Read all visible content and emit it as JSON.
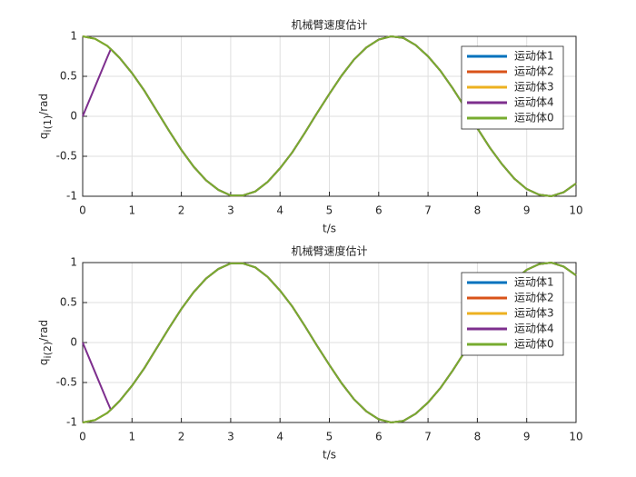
{
  "chart_data": [
    {
      "type": "line",
      "title": "机械臂速度估计",
      "xlabel": "t/s",
      "ylabel": "q",
      "ylabel_sub": "i(1)",
      "ylabel_suffix": "/rad",
      "xlim": [
        0,
        10
      ],
      "ylim": [
        -1,
        1
      ],
      "xticks": [
        0,
        1,
        2,
        3,
        4,
        5,
        6,
        7,
        8,
        9,
        10
      ],
      "yticks": [
        -1,
        -0.5,
        0,
        0.5,
        1
      ],
      "grid": true,
      "legend": "upper right",
      "x": [
        0,
        0.25,
        0.5,
        0.57,
        0.75,
        1,
        1.25,
        1.5,
        1.75,
        2,
        2.25,
        2.5,
        2.75,
        3,
        3.25,
        3.5,
        3.75,
        4,
        4.25,
        4.5,
        4.75,
        5,
        5.25,
        5.5,
        5.75,
        6,
        6.25,
        6.5,
        6.75,
        7,
        7.25,
        7.5,
        7.75,
        8,
        8.25,
        8.5,
        8.75,
        9,
        9.25,
        9.5,
        9.75,
        10
      ],
      "series": [
        {
          "name": "运动体1",
          "color": "#0072bd",
          "values": [
            1,
            0.97,
            0.88,
            0.84,
            0.73,
            0.54,
            0.32,
            0.07,
            -0.18,
            -0.42,
            -0.63,
            -0.8,
            -0.92,
            -0.99,
            -0.99,
            -0.94,
            -0.82,
            -0.65,
            -0.45,
            -0.21,
            0.04,
            0.28,
            0.51,
            0.71,
            0.86,
            0.96,
            1,
            0.98,
            0.89,
            0.75,
            0.57,
            0.35,
            0.11,
            -0.15,
            -0.39,
            -0.6,
            -0.78,
            -0.91,
            -0.98,
            -1,
            -0.95,
            -0.84
          ]
        },
        {
          "name": "运动体2",
          "color": "#d95319",
          "values": [
            1,
            0.97,
            0.88,
            0.84,
            0.73,
            0.54,
            0.32,
            0.07,
            -0.18,
            -0.42,
            -0.63,
            -0.8,
            -0.92,
            -0.99,
            -0.99,
            -0.94,
            -0.82,
            -0.65,
            -0.45,
            -0.21,
            0.04,
            0.28,
            0.51,
            0.71,
            0.86,
            0.96,
            1,
            0.98,
            0.89,
            0.75,
            0.57,
            0.35,
            0.11,
            -0.15,
            -0.39,
            -0.6,
            -0.78,
            -0.91,
            -0.98,
            -1,
            -0.95,
            -0.84
          ]
        },
        {
          "name": "运动体3",
          "color": "#edb120",
          "values": [
            1,
            0.97,
            0.88,
            0.84,
            0.73,
            0.54,
            0.32,
            0.07,
            -0.18,
            -0.42,
            -0.63,
            -0.8,
            -0.92,
            -0.99,
            -0.99,
            -0.94,
            -0.82,
            -0.65,
            -0.45,
            -0.21,
            0.04,
            0.28,
            0.51,
            0.71,
            0.86,
            0.96,
            1,
            0.98,
            0.89,
            0.75,
            0.57,
            0.35,
            0.11,
            -0.15,
            -0.39,
            -0.6,
            -0.78,
            -0.91,
            -0.98,
            -1,
            -0.95,
            -0.84
          ]
        },
        {
          "name": "运动体4",
          "color": "#7e2f8e",
          "values": [
            0,
            0.37,
            0.74,
            0.84,
            0.73,
            0.54,
            0.32,
            0.07,
            -0.18,
            -0.42,
            -0.63,
            -0.8,
            -0.92,
            -0.99,
            -0.99,
            -0.94,
            -0.82,
            -0.65,
            -0.45,
            -0.21,
            0.04,
            0.28,
            0.51,
            0.71,
            0.86,
            0.96,
            1,
            0.98,
            0.89,
            0.75,
            0.57,
            0.35,
            0.11,
            -0.15,
            -0.39,
            -0.6,
            -0.78,
            -0.91,
            -0.98,
            -1,
            -0.95,
            -0.84
          ]
        },
        {
          "name": "运动体0",
          "color": "#77ac30",
          "values": [
            1,
            0.97,
            0.88,
            0.84,
            0.73,
            0.54,
            0.32,
            0.07,
            -0.18,
            -0.42,
            -0.63,
            -0.8,
            -0.92,
            -0.99,
            -0.99,
            -0.94,
            -0.82,
            -0.65,
            -0.45,
            -0.21,
            0.04,
            0.28,
            0.51,
            0.71,
            0.86,
            0.96,
            1,
            0.98,
            0.89,
            0.75,
            0.57,
            0.35,
            0.11,
            -0.15,
            -0.39,
            -0.6,
            -0.78,
            -0.91,
            -0.98,
            -1,
            -0.95,
            -0.84
          ]
        }
      ]
    },
    {
      "type": "line",
      "title": "机械臂速度估计",
      "xlabel": "t/s",
      "ylabel": "q",
      "ylabel_sub": "i(2)",
      "ylabel_suffix": "/rad",
      "xlim": [
        0,
        10
      ],
      "ylim": [
        -1,
        1
      ],
      "xticks": [
        0,
        1,
        2,
        3,
        4,
        5,
        6,
        7,
        8,
        9,
        10
      ],
      "yticks": [
        -1,
        -0.5,
        0,
        0.5,
        1
      ],
      "grid": true,
      "legend": "upper right",
      "x": [
        0,
        0.25,
        0.5,
        0.57,
        0.75,
        1,
        1.25,
        1.5,
        1.75,
        2,
        2.25,
        2.5,
        2.75,
        3,
        3.25,
        3.5,
        3.75,
        4,
        4.25,
        4.5,
        4.75,
        5,
        5.25,
        5.5,
        5.75,
        6,
        6.25,
        6.5,
        6.75,
        7,
        7.25,
        7.5,
        7.75,
        8,
        8.25,
        8.5,
        8.75,
        9,
        9.25,
        9.5,
        9.75,
        10
      ],
      "series": [
        {
          "name": "运动体1",
          "color": "#0072bd",
          "values": [
            -1,
            -0.97,
            -0.88,
            -0.84,
            -0.73,
            -0.54,
            -0.32,
            -0.07,
            0.18,
            0.42,
            0.63,
            0.8,
            0.92,
            0.99,
            0.99,
            0.94,
            0.82,
            0.65,
            0.45,
            0.21,
            -0.04,
            -0.28,
            -0.51,
            -0.71,
            -0.86,
            -0.96,
            -1,
            -0.98,
            -0.89,
            -0.75,
            -0.57,
            -0.35,
            -0.11,
            0.15,
            0.39,
            0.6,
            0.78,
            0.91,
            0.98,
            1,
            0.95,
            0.84
          ]
        },
        {
          "name": "运动体2",
          "color": "#d95319",
          "values": [
            -1,
            -0.97,
            -0.88,
            -0.84,
            -0.73,
            -0.54,
            -0.32,
            -0.07,
            0.18,
            0.42,
            0.63,
            0.8,
            0.92,
            0.99,
            0.99,
            0.94,
            0.82,
            0.65,
            0.45,
            0.21,
            -0.04,
            -0.28,
            -0.51,
            -0.71,
            -0.86,
            -0.96,
            -1,
            -0.98,
            -0.89,
            -0.75,
            -0.57,
            -0.35,
            -0.11,
            0.15,
            0.39,
            0.6,
            0.78,
            0.91,
            0.98,
            1,
            0.95,
            0.84
          ]
        },
        {
          "name": "运动体3",
          "color": "#edb120",
          "values": [
            -1,
            -0.97,
            -0.88,
            -0.84,
            -0.73,
            -0.54,
            -0.32,
            -0.07,
            0.18,
            0.42,
            0.63,
            0.8,
            0.92,
            0.99,
            0.99,
            0.94,
            0.82,
            0.65,
            0.45,
            0.21,
            -0.04,
            -0.28,
            -0.51,
            -0.71,
            -0.86,
            -0.96,
            -1,
            -0.98,
            -0.89,
            -0.75,
            -0.57,
            -0.35,
            -0.11,
            0.15,
            0.39,
            0.6,
            0.78,
            0.91,
            0.98,
            1,
            0.95,
            0.84
          ]
        },
        {
          "name": "运动体4",
          "color": "#7e2f8e",
          "values": [
            0,
            -0.37,
            -0.74,
            -0.84,
            -0.73,
            -0.54,
            -0.32,
            -0.07,
            0.18,
            0.42,
            0.63,
            0.8,
            0.92,
            0.99,
            0.99,
            0.94,
            0.82,
            0.65,
            0.45,
            0.21,
            -0.04,
            -0.28,
            -0.51,
            -0.71,
            -0.86,
            -0.96,
            -1,
            -0.98,
            -0.89,
            -0.75,
            -0.57,
            -0.35,
            -0.11,
            0.15,
            0.39,
            0.6,
            0.78,
            0.91,
            0.98,
            1,
            0.95,
            0.84
          ]
        },
        {
          "name": "运动体0",
          "color": "#77ac30",
          "values": [
            -1,
            -0.97,
            -0.88,
            -0.84,
            -0.73,
            -0.54,
            -0.32,
            -0.07,
            0.18,
            0.42,
            0.63,
            0.8,
            0.92,
            0.99,
            0.99,
            0.94,
            0.82,
            0.65,
            0.45,
            0.21,
            -0.04,
            -0.28,
            -0.51,
            -0.71,
            -0.86,
            -0.96,
            -1,
            -0.98,
            -0.89,
            -0.75,
            -0.57,
            -0.35,
            -0.11,
            0.15,
            0.39,
            0.6,
            0.78,
            0.91,
            0.98,
            1,
            0.95,
            0.84
          ]
        }
      ]
    }
  ]
}
